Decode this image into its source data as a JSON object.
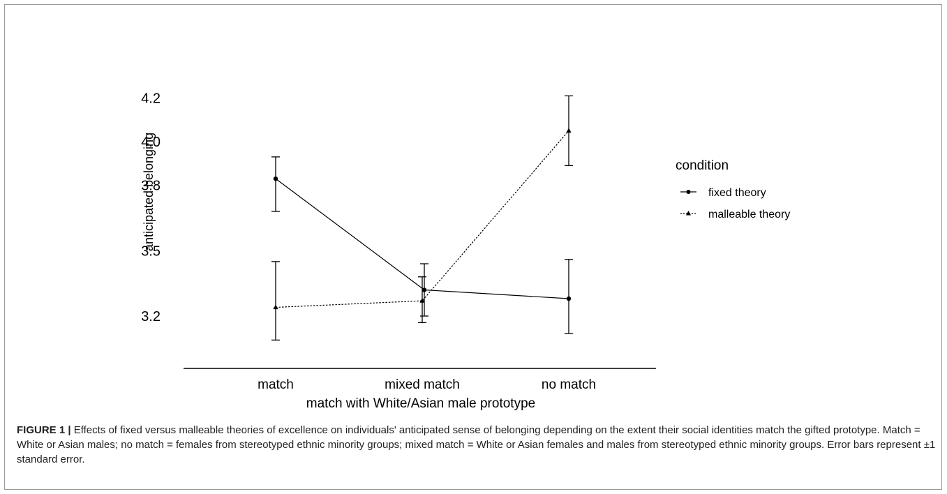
{
  "chart_data": {
    "type": "line",
    "xlabel": "match with White/Asian male prototype",
    "ylabel": "anticipated belonging",
    "categories": [
      "match",
      "mixed match",
      "no match"
    ],
    "yticks": [
      "3.2",
      "3.5",
      "3.8",
      "4.0",
      "4.2"
    ],
    "ylim": [
      3.05,
      4.22
    ],
    "legend_title": "condition",
    "legend_position": "right",
    "series": [
      {
        "name": "fixed theory",
        "marker": "circle",
        "line_style": "solid",
        "values": [
          3.83,
          3.32,
          3.28
        ],
        "error_low": [
          3.68,
          3.2,
          3.12
        ],
        "error_high": [
          3.93,
          3.44,
          3.46
        ]
      },
      {
        "name": "malleable theory",
        "marker": "triangle",
        "line_style": "dotted",
        "values": [
          3.24,
          3.27,
          4.05
        ],
        "error_low": [
          3.09,
          3.17,
          3.89
        ],
        "error_high": [
          3.45,
          3.38,
          4.21
        ]
      }
    ]
  },
  "caption": {
    "label": "FIGURE 1 |",
    "text": "Effects of fixed versus malleable theories of excellence on individuals' anticipated sense of belonging depending on the extent their social identities match the gifted prototype. Match = White or Asian males; no match = females from stereotyped ethnic minority groups; mixed match = White or Asian females and males from stereotyped ethnic minority groups. Error bars represent ±1 standard error."
  }
}
